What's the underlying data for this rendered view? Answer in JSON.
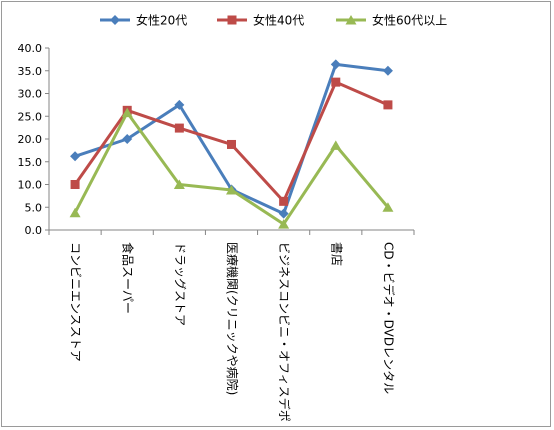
{
  "chart_data": {
    "type": "line",
    "title": "",
    "xlabel": "",
    "ylabel": "",
    "ylim": [
      0,
      40
    ],
    "yticks": [
      "0.0",
      "5.0",
      "10.0",
      "15.0",
      "20.0",
      "25.0",
      "30.0",
      "35.0",
      "40.0"
    ],
    "grid": false,
    "legend_position": "top",
    "categories": [
      "コンビニエンスストア",
      "食品スーパー",
      "ドラッグストア",
      "医療機関(クリニックや病院)",
      "ビジネスコンビニ・オフィスデポ",
      "書店",
      "CD・ビデオ・DVDレンタル"
    ],
    "series": [
      {
        "name": "女性20代",
        "color": "#4a7ebb",
        "marker": "diamond",
        "values": [
          16.2,
          20.0,
          27.5,
          8.9,
          3.6,
          36.4,
          35.0
        ]
      },
      {
        "name": "女性40代",
        "color": "#be4b48",
        "marker": "square",
        "values": [
          10.0,
          26.3,
          22.4,
          18.8,
          6.3,
          32.5,
          27.5
        ]
      },
      {
        "name": "女性60代以上",
        "color": "#98b954",
        "marker": "triangle",
        "values": [
          3.8,
          25.8,
          10.0,
          8.8,
          1.3,
          18.6,
          5.0
        ]
      }
    ]
  }
}
